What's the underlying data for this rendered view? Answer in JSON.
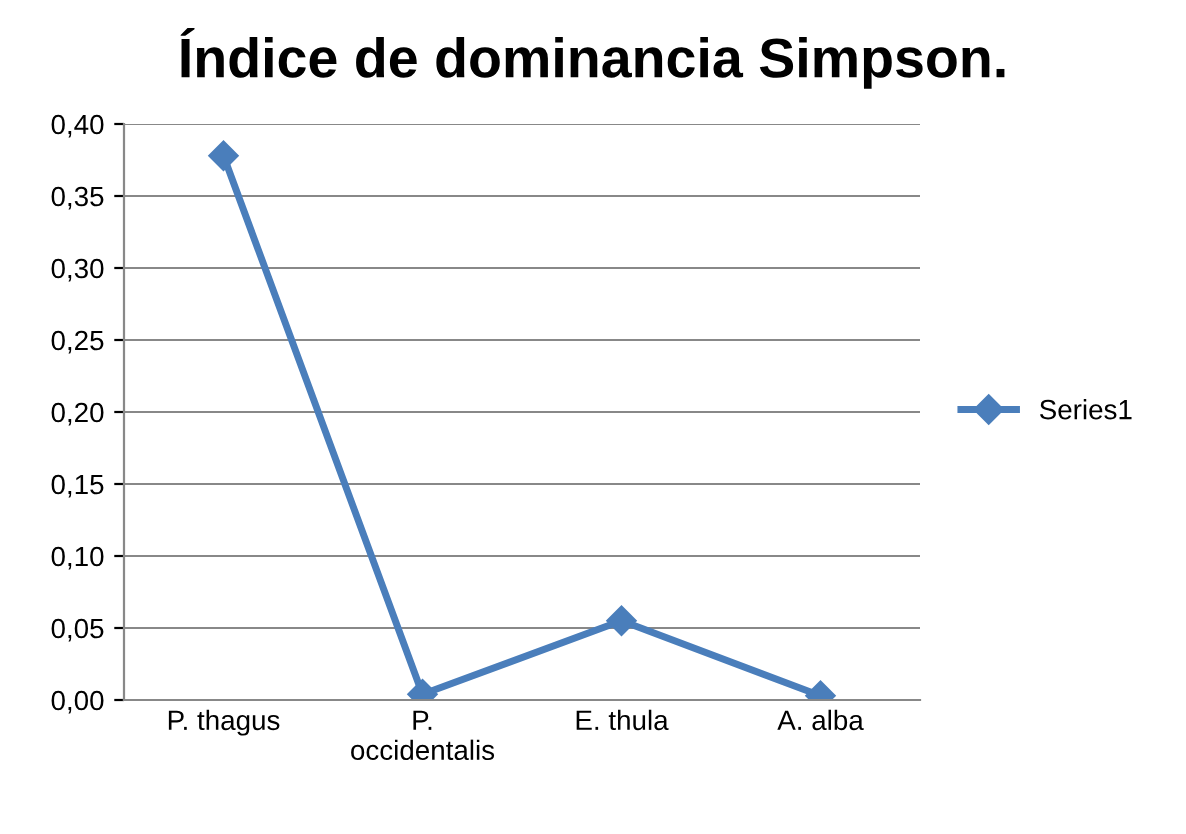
{
  "chart_data": {
    "type": "line",
    "title": "Índice de dominancia Simpson.",
    "categories": [
      "P. thagus",
      "P.\noccidentalis",
      "E. thula",
      "A. alba"
    ],
    "series": [
      {
        "name": "Series1",
        "color": "#4a7ebb",
        "values": [
          0.378,
          0.004,
          0.055,
          0.003
        ]
      }
    ],
    "ylim": [
      0,
      0.4
    ],
    "yticks": [
      {
        "value": 0,
        "label": "0,00"
      },
      {
        "value": 0.05,
        "label": "0,05"
      },
      {
        "value": 0.1,
        "label": "0,10"
      },
      {
        "value": 0.15,
        "label": "0,15"
      },
      {
        "value": 0.2,
        "label": "0,20"
      },
      {
        "value": 0.25,
        "label": "0,25"
      },
      {
        "value": 0.3,
        "label": "0,30"
      },
      {
        "value": 0.35,
        "label": "0,35"
      },
      {
        "value": 0.4,
        "label": "0,40"
      }
    ],
    "grid": "y",
    "legend": "right",
    "marker": "diamond",
    "line_style": "solid"
  }
}
